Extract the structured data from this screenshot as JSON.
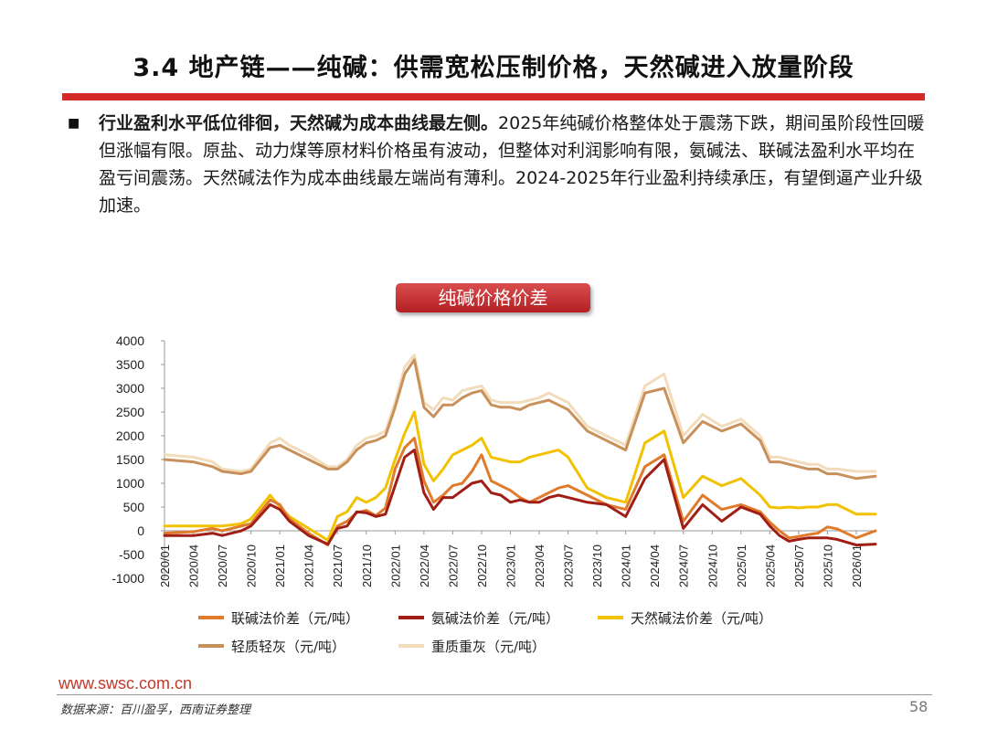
{
  "page": {
    "title": "3.4 地产链——纯碱：供需宽松压制价格，天然碱进入放量阶段",
    "bullet_symbol": "■",
    "paragraph_bold": "行业盈利水平低位徘徊，天然碱为成本曲线最左侧。",
    "paragraph_rest": "2025年纯碱价格整体处于震荡下跌，期间虽阶段性回暖但涨幅有限。原盐、动力煤等原材料价格虽有波动，但整体对利润影响有限，氨碱法、联碱法盈利水平均在盈亏间震荡。天然碱法作为成本曲线最左端尚有薄利。2024-2025年行业盈利持续承压，有望倒逼产业升级加速。",
    "site": "www.swsc.com.cn",
    "source": "数据来源：百川盈孚，西南证券整理",
    "page_number": "58"
  },
  "chart_data": {
    "type": "line",
    "title": "纯碱价格价差",
    "ylim": [
      -1000,
      4000
    ],
    "yticks": [
      "4000",
      "3500",
      "3000",
      "2500",
      "2000",
      "1500",
      "1000",
      "500",
      "0",
      "-500",
      "-1000"
    ],
    "x_tick_labels": [
      "2020/01",
      "2020/04",
      "2020/07",
      "2020/10",
      "2021/01",
      "2021/04",
      "2021/07",
      "2021/10",
      "2022/01",
      "2022/04",
      "2022/07",
      "2022/10",
      "2023/01",
      "2023/04",
      "2023/07",
      "2023/10",
      "2024/01",
      "2024/04",
      "2024/07",
      "2024/10",
      "2025/01",
      "2025/04",
      "2025/07",
      "2025/10",
      "2026/01"
    ],
    "x_index": [
      0,
      3,
      5,
      6,
      8,
      9,
      11,
      12,
      13,
      15,
      17,
      18,
      19,
      20,
      21,
      22,
      23,
      24,
      25,
      26,
      27,
      28,
      29,
      30,
      31,
      32,
      33,
      34,
      35,
      36,
      37,
      38,
      39,
      40,
      41,
      42,
      44,
      46,
      48,
      50,
      52,
      54,
      56,
      58,
      60,
      62,
      63,
      64,
      65,
      66,
      67,
      68,
      69,
      70,
      72,
      74
    ],
    "series": [
      {
        "name": "联碱法价差（元/吨）",
        "color": "#e07b2c",
        "width": 3,
        "values": [
          -50,
          -20,
          50,
          0,
          100,
          150,
          650,
          550,
          250,
          -50,
          -300,
          100,
          200,
          380,
          430,
          320,
          480,
          1300,
          1750,
          1950,
          1050,
          600,
          750,
          950,
          1000,
          1250,
          1600,
          1050,
          950,
          850,
          700,
          600,
          700,
          800,
          900,
          950,
          750,
          550,
          450,
          1350,
          1600,
          200,
          750,
          450,
          550,
          400,
          180,
          0,
          -150,
          -120,
          -80,
          -50,
          80,
          40,
          -150,
          0
        ]
      },
      {
        "name": "氨碱法价差（元/吨）",
        "color": "#a01e16",
        "width": 3,
        "values": [
          -100,
          -100,
          -50,
          -100,
          0,
          100,
          550,
          450,
          200,
          -100,
          -280,
          50,
          100,
          400,
          380,
          300,
          350,
          950,
          1550,
          1700,
          800,
          450,
          700,
          700,
          850,
          1000,
          1050,
          800,
          750,
          600,
          650,
          600,
          600,
          700,
          750,
          700,
          600,
          550,
          300,
          1100,
          1500,
          50,
          550,
          200,
          500,
          350,
          100,
          -100,
          -220,
          -180,
          -150,
          -150,
          -150,
          -180,
          -300,
          -280
        ]
      },
      {
        "name": "天然碱法价差（元/吨）",
        "color": "#f2c200",
        "width": 3,
        "values": [
          100,
          100,
          100,
          100,
          150,
          250,
          750,
          500,
          300,
          50,
          -200,
          300,
          400,
          700,
          600,
          700,
          900,
          1500,
          2050,
          2500,
          1400,
          1050,
          1300,
          1600,
          1700,
          1800,
          1950,
          1550,
          1500,
          1450,
          1450,
          1550,
          1600,
          1650,
          1700,
          1550,
          900,
          700,
          600,
          1850,
          2100,
          700,
          1150,
          950,
          1100,
          750,
          500,
          480,
          500,
          480,
          500,
          500,
          550,
          550,
          350,
          350
        ]
      },
      {
        "name": "轻质轻灰（元/吨）",
        "color": "#c8915c",
        "width": 3,
        "values": [
          1500,
          1450,
          1350,
          1250,
          1200,
          1250,
          1750,
          1800,
          1700,
          1500,
          1300,
          1300,
          1450,
          1700,
          1850,
          1900,
          2000,
          2600,
          3300,
          3600,
          2600,
          2400,
          2650,
          2650,
          2800,
          2900,
          2950,
          2650,
          2600,
          2600,
          2550,
          2650,
          2700,
          2750,
          2650,
          2550,
          2100,
          1900,
          1700,
          2900,
          3000,
          1850,
          2300,
          2100,
          2250,
          1900,
          1450,
          1450,
          1400,
          1350,
          1300,
          1300,
          1200,
          1200,
          1100,
          1150
        ]
      },
      {
        "name": "重质重灰（元/吨）",
        "color": "#f2dcbb",
        "width": 3,
        "values": [
          1600,
          1550,
          1450,
          1300,
          1250,
          1300,
          1850,
          1950,
          1800,
          1600,
          1350,
          1350,
          1500,
          1800,
          1950,
          2000,
          2100,
          2700,
          3450,
          3700,
          2700,
          2550,
          2800,
          2750,
          2950,
          3000,
          3050,
          2750,
          2700,
          2700,
          2700,
          2750,
          2800,
          2900,
          2800,
          2700,
          2200,
          2000,
          1800,
          3050,
          3300,
          2000,
          2450,
          2200,
          2350,
          2000,
          1550,
          1550,
          1500,
          1450,
          1400,
          1400,
          1300,
          1300,
          1250,
          1250
        ]
      }
    ],
    "legend": [
      {
        "label": "联碱法价差（元/吨）",
        "color": "#e07b2c"
      },
      {
        "label": "氨碱法价差（元/吨）",
        "color": "#a01e16"
      },
      {
        "label": "天然碱法价差（元/吨）",
        "color": "#f2c200"
      },
      {
        "label": "轻质轻灰（元/吨）",
        "color": "#c8915c"
      },
      {
        "label": "重质重灰（元/吨）",
        "color": "#f2dcbb"
      }
    ]
  }
}
